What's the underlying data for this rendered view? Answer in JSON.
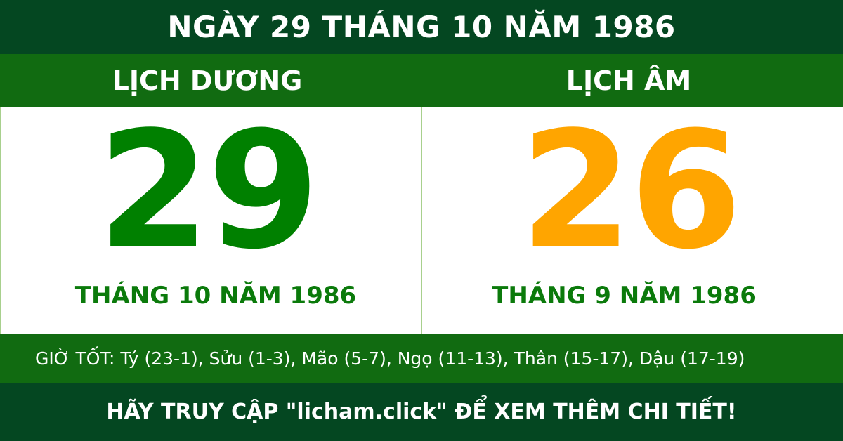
{
  "title": "NGÀY 29 THÁNG 10 NĂM 1986",
  "solar": {
    "heading": "LỊCH DƯƠNG",
    "day": "29",
    "month_year": "THÁNG 10 NĂM 1986"
  },
  "lunar": {
    "heading": "LỊCH ÂM",
    "day": "26",
    "month_year": "THÁNG 9 NĂM 1986"
  },
  "good_hours": "GIỜ TỐT: Tý (23-1), Sửu (1-3), Mão (5-7), Ngọ (11-13), Thân (15-17), Dậu (17-19)",
  "footer": "HÃY TRUY CẬP \"licham.click\" ĐỂ XEM THÊM CHI TIẾT!",
  "colors": {
    "dark_green": "#044721",
    "green": "#116b11",
    "solar_day": "#008000",
    "lunar_day": "#ffa500"
  }
}
